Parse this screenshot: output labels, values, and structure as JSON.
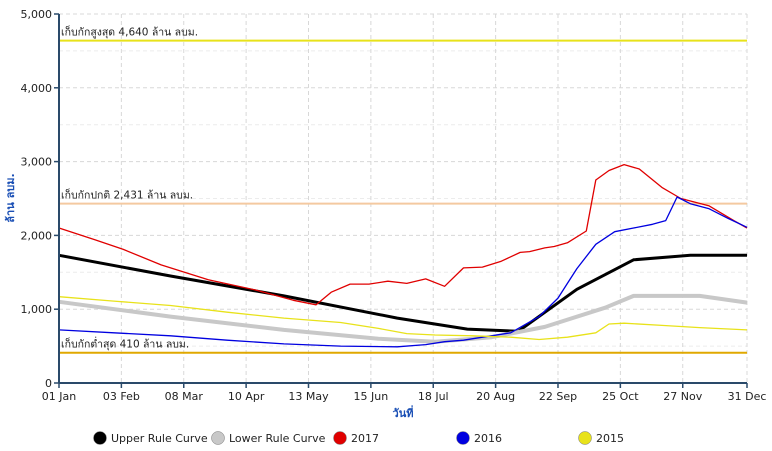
{
  "chart_data": {
    "type": "line",
    "title": "",
    "xlabel": "วันที่",
    "ylabel": "ล้าน ลบม.",
    "xlim": [
      1,
      365
    ],
    "ylim": [
      0,
      5000
    ],
    "grid": true,
    "legend_position": "bottom",
    "x_ticks": [
      {
        "day": 1,
        "label": "01 Jan"
      },
      {
        "day": 34,
        "label": "03 Feb"
      },
      {
        "day": 67,
        "label": "08 Mar"
      },
      {
        "day": 100,
        "label": "10 Apr"
      },
      {
        "day": 133,
        "label": "13 May"
      },
      {
        "day": 166,
        "label": "15 Jun"
      },
      {
        "day": 199,
        "label": "18 Jul"
      },
      {
        "day": 232,
        "label": "20 Aug"
      },
      {
        "day": 265,
        "label": "22 Sep"
      },
      {
        "day": 298,
        "label": "25 Oct"
      },
      {
        "day": 331,
        "label": "27 Nov"
      },
      {
        "day": 365,
        "label": "31 Dec"
      }
    ],
    "y_ticks": [
      {
        "value": 0,
        "label": "0"
      },
      {
        "value": 1000,
        "label": "1,000"
      },
      {
        "value": 2000,
        "label": "2,000"
      },
      {
        "value": 3000,
        "label": "3,000"
      },
      {
        "value": 4000,
        "label": "4,000"
      },
      {
        "value": 5000,
        "label": "5,000"
      }
    ],
    "reference_lines": [
      {
        "value": 4640,
        "label": "เก็บกักสูงสุด 4,640 ล้าน ลบม.",
        "color": "#e8e21a"
      },
      {
        "value": 2431,
        "label": "เก็บกักปกติ 2,431 ล้าน ลบม.",
        "color": "#f4c9a0"
      },
      {
        "value": 410,
        "label": "เก็บกักต่ำสุด 410 ล้าน ลบม.",
        "color": "#e0a800"
      }
    ],
    "series": [
      {
        "name": "Upper Rule Curve",
        "color": "#000000",
        "x": [
          1,
          60,
          120,
          180,
          217,
          244,
          275,
          305,
          335,
          365
        ],
        "y": [
          1730,
          1450,
          1180,
          880,
          730,
          700,
          1270,
          1670,
          1730,
          1730
        ]
      },
      {
        "name": "Lower Rule Curve",
        "color": "#c8c8c8",
        "x": [
          1,
          60,
          120,
          170,
          200,
          230,
          258,
          290,
          305,
          340,
          365
        ],
        "y": [
          1100,
          900,
          720,
          600,
          560,
          620,
          760,
          1020,
          1180,
          1180,
          1090
        ]
      },
      {
        "name": "2017",
        "color": "#e00000",
        "x": [
          1,
          20,
          35,
          55,
          80,
          105,
          125,
          137,
          145,
          155,
          165,
          175,
          185,
          195,
          205,
          215,
          225,
          235,
          245,
          250,
          258,
          263,
          270,
          280,
          285,
          292,
          300,
          308,
          320,
          330,
          345,
          358,
          365
        ],
        "y": [
          2100,
          1940,
          1810,
          1600,
          1400,
          1260,
          1120,
          1060,
          1230,
          1340,
          1340,
          1380,
          1350,
          1410,
          1310,
          1560,
          1570,
          1650,
          1770,
          1780,
          1830,
          1850,
          1900,
          2060,
          2750,
          2880,
          2960,
          2900,
          2650,
          2500,
          2400,
          2200,
          2100
        ]
      },
      {
        "name": "2016",
        "color": "#0000e0",
        "x": [
          1,
          30,
          60,
          90,
          120,
          150,
          180,
          195,
          205,
          215,
          225,
          240,
          255,
          265,
          270,
          275,
          285,
          295,
          305,
          315,
          322,
          328,
          335,
          345,
          355,
          365
        ],
        "y": [
          720,
          680,
          640,
          580,
          530,
          500,
          490,
          520,
          560,
          580,
          620,
          680,
          900,
          1150,
          1350,
          1550,
          1880,
          2050,
          2100,
          2150,
          2200,
          2520,
          2430,
          2360,
          2230,
          2110
        ]
      },
      {
        "name": "2015",
        "color": "#e8e21a",
        "x": [
          1,
          30,
          60,
          90,
          120,
          150,
          170,
          185,
          200,
          220,
          240,
          255,
          270,
          285,
          292,
          300,
          320,
          340,
          365
        ],
        "y": [
          1170,
          1110,
          1050,
          960,
          880,
          820,
          740,
          670,
          650,
          640,
          620,
          590,
          620,
          680,
          800,
          810,
          780,
          750,
          720
        ]
      }
    ]
  }
}
